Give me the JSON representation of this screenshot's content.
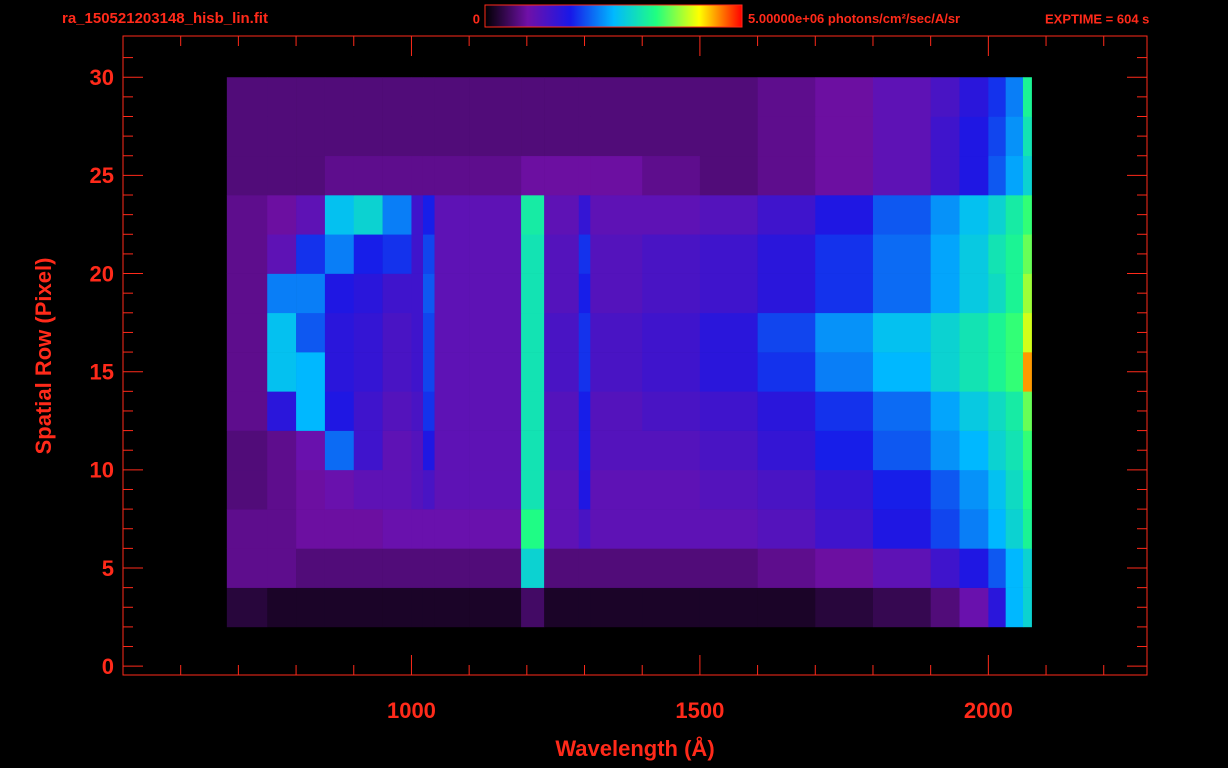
{
  "chart_data": {
    "type": "heatmap",
    "title": "ra_150521203148_hisb_lin.fit",
    "x_label": "Wavelength (Å)",
    "y_label": "Spatial Row (Pixel)",
    "annotation": "EXPTIME = 604 s",
    "xlim": [
      500,
      2275
    ],
    "ylim": [
      -0.45,
      32.1
    ],
    "xticks": [
      1000,
      1500,
      2000
    ],
    "yticks": [
      0,
      5,
      10,
      15,
      20,
      25,
      30
    ],
    "xminorticks": [
      600,
      700,
      800,
      900,
      1100,
      1200,
      1300,
      1400,
      1600,
      1700,
      1800,
      1900,
      2100,
      2200
    ],
    "yminorticks": [
      1,
      2,
      3,
      4,
      6,
      7,
      8,
      9,
      11,
      12,
      13,
      14,
      16,
      17,
      18,
      19,
      21,
      22,
      23,
      24,
      26,
      27,
      28,
      29,
      31
    ],
    "colorbar": {
      "ticks": [
        0,
        {
          "value": 5000000,
          "label": "5.00000e+06"
        }
      ],
      "unit": "photons/cm²/sec/A/sr"
    },
    "colormap": [
      "#000000",
      "#7010a8",
      "#1818e8",
      "#00b8ff",
      "#20ff80",
      "#ffff00",
      "#ff0000"
    ],
    "xbins": [
      680,
      750,
      800,
      850,
      900,
      950,
      1000,
      1020,
      1040,
      1100,
      1190,
      1230,
      1290,
      1310,
      1400,
      1500,
      1600,
      1700,
      1800,
      1900,
      1950,
      2000,
      2030,
      2060,
      2075
    ],
    "ybins": [
      2,
      4,
      6,
      8,
      10,
      12,
      14,
      16,
      18,
      20,
      22,
      24,
      26,
      28,
      30
    ],
    "values": [
      [
        300000.0,
        200000.0,
        200000.0,
        200000.0,
        200000.0,
        200000.0,
        200000.0,
        200000.0,
        200000.0,
        200000.0,
        500000.0,
        200000.0,
        200000.0,
        200000.0,
        200000.0,
        200000.0,
        200000.0,
        300000.0,
        400000.0,
        600000.0,
        900000.0,
        1500000.0,
        2500000.0,
        2800000.0
      ],
      [
        700000.0,
        700000.0,
        600000.0,
        600000.0,
        600000.0,
        600000.0,
        600000.0,
        600000.0,
        600000.0,
        600000.0,
        2800000.0,
        600000.0,
        600000.0,
        600000.0,
        600000.0,
        600000.0,
        700000.0,
        800000.0,
        1000000.0,
        1300000.0,
        1600000.0,
        2000000.0,
        2500000.0,
        2800000.0
      ],
      [
        700000.0,
        700000.0,
        800000.0,
        800000.0,
        800000.0,
        900000.0,
        900000.0,
        900000.0,
        900000.0,
        900000.0,
        3300000.0,
        1000000.0,
        1200000.0,
        1000000.0,
        1000000.0,
        1000000.0,
        1100000.0,
        1300000.0,
        1600000.0,
        1900000.0,
        2200000.0,
        2500000.0,
        2800000.0,
        3200000.0
      ],
      [
        600000.0,
        700000.0,
        800000.0,
        900000.0,
        1000000.0,
        1000000.0,
        1100000.0,
        1200000.0,
        1000000.0,
        1000000.0,
        3000000.0,
        1000000.0,
        1600000.0,
        1000000.0,
        1000000.0,
        1100000.0,
        1200000.0,
        1400000.0,
        1700000.0,
        2000000.0,
        2300000.0,
        2600000.0,
        2900000.0,
        3300000.0
      ],
      [
        600000.0,
        700000.0,
        900000.0,
        2100000.0,
        1300000.0,
        1000000.0,
        1100000.0,
        1600000.0,
        1000000.0,
        1000000.0,
        3000000.0,
        1100000.0,
        1700000.0,
        1100000.0,
        1100000.0,
        1200000.0,
        1400000.0,
        1700000.0,
        2000000.0,
        2300000.0,
        2500000.0,
        2800000.0,
        3000000.0,
        3400000.0
      ],
      [
        700000.0,
        1500000.0,
        2500000.0,
        1600000.0,
        1300000.0,
        1100000.0,
        1200000.0,
        1800000.0,
        1000000.0,
        1000000.0,
        3000000.0,
        1100000.0,
        1700000.0,
        1100000.0,
        1200000.0,
        1300000.0,
        1500000.0,
        1800000.0,
        2100000.0,
        2400000.0,
        2700000.0,
        2900000.0,
        3100000.0,
        3600000.0
      ],
      [
        700000.0,
        2600000.0,
        2500000.0,
        1500000.0,
        1400000.0,
        1200000.0,
        1300000.0,
        1900000.0,
        1000000.0,
        1000000.0,
        3000000.0,
        1200000.0,
        1800000.0,
        1200000.0,
        1300000.0,
        1500000.0,
        1800000.0,
        2200000.0,
        2500000.0,
        2800000.0,
        3000000.0,
        3200000.0,
        3400000.0,
        4500000.0
      ],
      [
        700000.0,
        2600000.0,
        2000000.0,
        1500000.0,
        1400000.0,
        1200000.0,
        1300000.0,
        1900000.0,
        1000000.0,
        1000000.0,
        3000000.0,
        1200000.0,
        1800000.0,
        1200000.0,
        1300000.0,
        1500000.0,
        1900000.0,
        2300000.0,
        2600000.0,
        2800000.0,
        3000000.0,
        3200000.0,
        3400000.0,
        4000000.0
      ],
      [
        700000.0,
        2200000.0,
        2200000.0,
        1600000.0,
        1500000.0,
        1300000.0,
        1300000.0,
        2000000.0,
        1000000.0,
        1000000.0,
        3000000.0,
        1100000.0,
        1700000.0,
        1100000.0,
        1200000.0,
        1300000.0,
        1500000.0,
        1800000.0,
        2100000.0,
        2400000.0,
        2700000.0,
        2900000.0,
        3200000.0,
        3800000.0
      ],
      [
        700000.0,
        1000000.0,
        1800000.0,
        2200000.0,
        1700000.0,
        1800000.0,
        1300000.0,
        1900000.0,
        1000000.0,
        1000000.0,
        3000000.0,
        1100000.0,
        1800000.0,
        1100000.0,
        1200000.0,
        1300000.0,
        1500000.0,
        1800000.0,
        2100000.0,
        2400000.0,
        2700000.0,
        3000000.0,
        3200000.0,
        3600000.0
      ],
      [
        700000.0,
        800000.0,
        1000000.0,
        2600000.0,
        2800000.0,
        2200000.0,
        1300000.0,
        1700000.0,
        1000000.0,
        1000000.0,
        3100000.0,
        1000000.0,
        1400000.0,
        1000000.0,
        1000000.0,
        1100000.0,
        1300000.0,
        1600000.0,
        2000000.0,
        2300000.0,
        2600000.0,
        2800000.0,
        3100000.0,
        3400000.0
      ],
      [
        600000.0,
        600000.0,
        600000.0,
        700000.0,
        700000.0,
        700000.0,
        700000.0,
        700000.0,
        700000.0,
        700000.0,
        800000.0,
        800000.0,
        800000.0,
        800000.0,
        700000.0,
        600000.0,
        700000.0,
        800000.0,
        1000000.0,
        1300000.0,
        1600000.0,
        2000000.0,
        2400000.0,
        2800000.0
      ],
      [
        600000.0,
        600000.0,
        600000.0,
        600000.0,
        600000.0,
        600000.0,
        600000.0,
        600000.0,
        600000.0,
        600000.0,
        600000.0,
        600000.0,
        600000.0,
        600000.0,
        600000.0,
        600000.0,
        700000.0,
        800000.0,
        1000000.0,
        1300000.0,
        1600000.0,
        1900000.0,
        2300000.0,
        3000000.0
      ],
      [
        600000.0,
        600000.0,
        600000.0,
        600000.0,
        600000.0,
        600000.0,
        600000.0,
        600000.0,
        600000.0,
        600000.0,
        600000.0,
        600000.0,
        600000.0,
        600000.0,
        600000.0,
        600000.0,
        700000.0,
        800000.0,
        1000000.0,
        1200000.0,
        1500000.0,
        1800000.0,
        2200000.0,
        3200000.0
      ]
    ]
  }
}
